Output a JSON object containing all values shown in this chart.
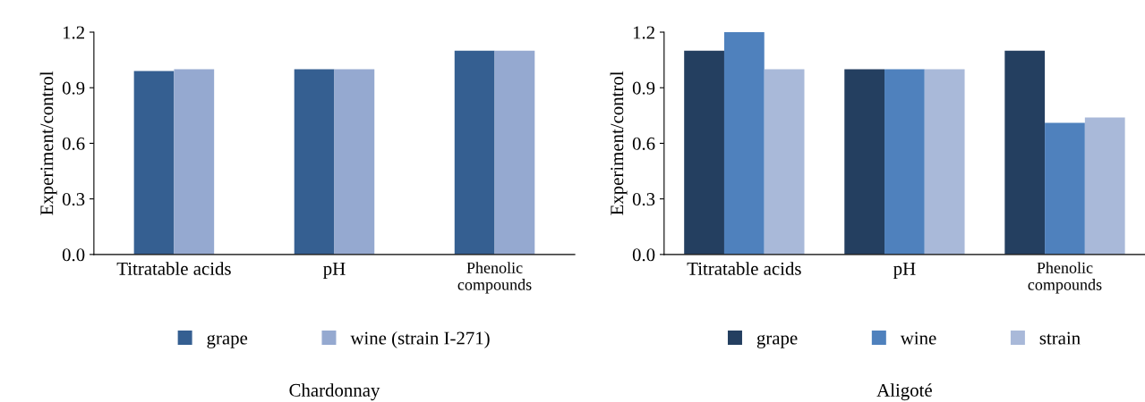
{
  "chart_data": [
    {
      "type": "bar",
      "title": "Chardonnay",
      "ylabel": "Experiment/control",
      "categories": [
        "Titratable acids",
        "pH",
        "Phenolic\ncompounds"
      ],
      "series": [
        {
          "name": "grape",
          "color": "#355f91",
          "values": [
            0.99,
            1.0,
            1.1
          ]
        },
        {
          "name": "wine (strain I-271)",
          "color": "#95a9d0",
          "values": [
            1.0,
            1.0,
            1.1
          ]
        }
      ],
      "ylim": [
        0,
        1.2
      ],
      "yticks": [
        {
          "value": 0,
          "label": "0.0"
        },
        {
          "value": 0.3,
          "label": "0.3"
        },
        {
          "value": 0.6,
          "label": "0.6"
        },
        {
          "value": 0.9,
          "label": "0.9"
        },
        {
          "value": 1.2,
          "label": "1.2"
        }
      ],
      "grid": false,
      "legend": "bottom"
    },
    {
      "type": "bar",
      "title": "Aligoté",
      "ylabel": "Experiment/control",
      "categories": [
        "Titratable acids",
        "pH",
        "Phenolic\ncompounds"
      ],
      "series": [
        {
          "name": "grape",
          "color": "#243f60",
          "values": [
            1.1,
            1.0,
            1.1
          ]
        },
        {
          "name": "wine",
          "color": "#4f81bd",
          "values": [
            1.2,
            1.0,
            0.71
          ]
        },
        {
          "name": "strain",
          "color": "#a9b9d9",
          "values": [
            1.0,
            1.0,
            0.74
          ]
        }
      ],
      "ylim": [
        0,
        1.2
      ],
      "yticks": [
        {
          "value": 0,
          "label": "0.0"
        },
        {
          "value": 0.3,
          "label": "0.3"
        },
        {
          "value": 0.6,
          "label": "0.6"
        },
        {
          "value": 0.9,
          "label": "0.9"
        },
        {
          "value": 1.2,
          "label": "1.2"
        }
      ],
      "grid": false,
      "legend": "bottom"
    }
  ]
}
